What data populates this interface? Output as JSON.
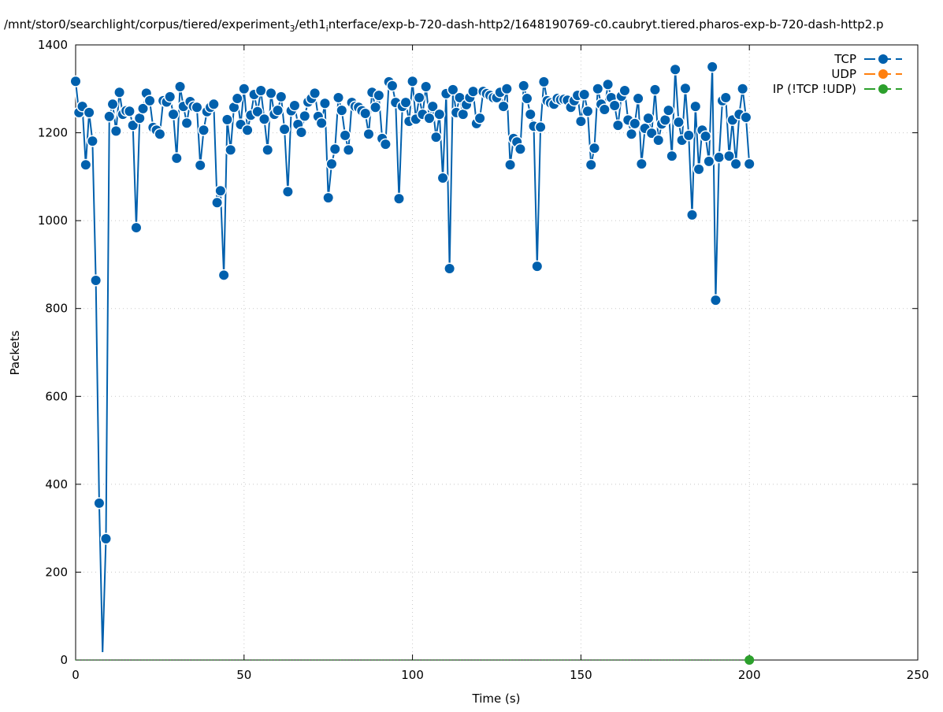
{
  "chart_data": {
    "type": "line",
    "title": "/mnt/stor0/searchlight/corpus/tiered/experiment_3/eth1_interface/exp-b-720-dash-http2/1648190769-c0.caubryt.tiered.pharos-exp-b-720-dash-http2.p",
    "xlabel": "Time (s)",
    "ylabel": "Packets",
    "xlim": [
      0,
      250
    ],
    "ylim": [
      0,
      1400
    ],
    "xticks": [
      0,
      50,
      100,
      150,
      200,
      250
    ],
    "yticks": [
      0,
      200,
      400,
      600,
      800,
      1000,
      1200,
      1400
    ],
    "grid": true,
    "legend_placement": "top-right",
    "series": [
      {
        "name": "TCP",
        "color": "#0060ad",
        "markers": true,
        "x_start": 0,
        "x_step": 1,
        "values": [
          1317,
          1246,
          1260,
          1127,
          1246,
          1181,
          864,
          357,
          18,
          276,
          1237,
          1265,
          1204,
          1292,
          1242,
          1250,
          1249,
          1217,
          984,
          1233,
          1255,
          1290,
          1273,
          1212,
          1206,
          1197,
          1273,
          1270,
          1282,
          1242,
          1142,
          1305,
          1260,
          1222,
          1271,
          1260,
          1258,
          1126,
          1206,
          1248,
          1258,
          1265,
          1041,
          1068,
          876,
          1230,
          1161,
          1258,
          1278,
          1219,
          1300,
          1206,
          1240,
          1287,
          1248,
          1296,
          1231,
          1161,
          1290,
          1242,
          1251,
          1282,
          1208,
          1066,
          1250,
          1262,
          1219,
          1201,
          1238,
          1270,
          1278,
          1290,
          1237,
          1222,
          1267,
          1052,
          1129,
          1163,
          1280,
          1251,
          1194,
          1161,
          1269,
          1260,
          1258,
          1250,
          1244,
          1197,
          1292,
          1258,
          1285,
          1187,
          1174,
          1316,
          1307,
          1269,
          1050,
          1260,
          1269,
          1226,
          1317,
          1231,
          1280,
          1242,
          1305,
          1233,
          1260,
          1190,
          1242,
          1097,
          1289,
          891,
          1298,
          1246,
          1280,
          1242,
          1264,
          1280,
          1294,
          1221,
          1233,
          1294,
          1289,
          1285,
          1280,
          1280,
          1292,
          1260,
          1300,
          1127,
          1187,
          1179,
          1163,
          1307,
          1278,
          1242,
          1215,
          896,
          1213,
          1316,
          1273,
          1268,
          1265,
          1278,
          1275,
          1276,
          1274,
          1258,
          1273,
          1285,
          1226,
          1287,
          1249,
          1127,
          1165,
          1300,
          1265,
          1253,
          1310,
          1280,
          1262,
          1217,
          1283,
          1296,
          1229,
          1197,
          1221,
          1278,
          1129,
          1210,
          1233,
          1199,
          1298,
          1183,
          1220,
          1229,
          1251,
          1147,
          1344,
          1224,
          1183,
          1301,
          1194,
          1013,
          1260,
          1117,
          1206,
          1192,
          1135,
          1350,
          819,
          1144,
          1273,
          1280,
          1147,
          1229,
          1129,
          1242,
          1300,
          1235,
          1129
        ]
      },
      {
        "name": "UDP",
        "color": "#ff7f0e",
        "markers": true,
        "values": []
      },
      {
        "name": "IP (!TCP  !UDP)",
        "color": "#2ca02c",
        "markers": true,
        "x_start": 0,
        "x_step": 1,
        "values_constant": 0,
        "count": 201
      }
    ]
  }
}
